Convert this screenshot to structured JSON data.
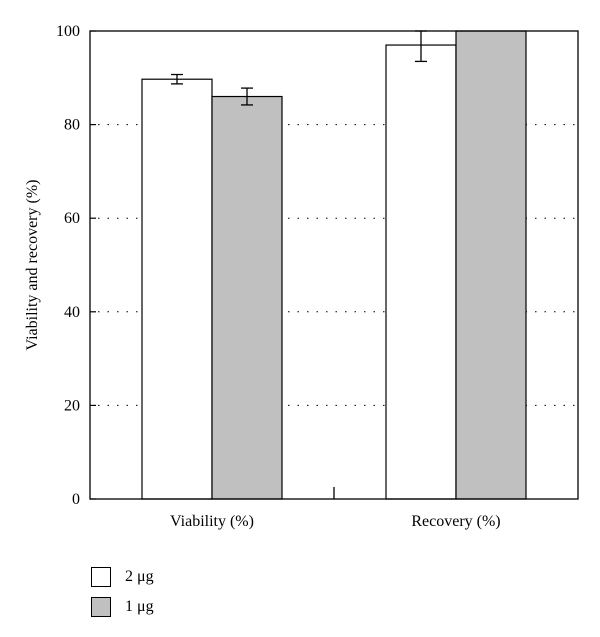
{
  "chart_data": {
    "type": "bar",
    "title": "",
    "xlabel": "",
    "ylabel": "Viability and recovery (%)",
    "ylim": [
      0,
      100
    ],
    "yticks": [
      0,
      20,
      40,
      60,
      80,
      100
    ],
    "grid": "dotted horizontal",
    "legend_position": "bottom-left",
    "categories": [
      "Viability (%)",
      "Recovery (%)"
    ],
    "series": [
      {
        "name": "2 μg",
        "color": "#ffffff",
        "values": [
          89.7,
          97.0
        ],
        "errors": [
          1.0,
          3.5
        ]
      },
      {
        "name": "1 μg",
        "color": "#c0c0c0",
        "values": [
          86.0,
          100.0
        ],
        "errors": [
          1.8,
          null
        ]
      }
    ]
  },
  "legend": {
    "items": [
      {
        "label": "2 μg",
        "color": "#ffffff"
      },
      {
        "label": "1 μg",
        "color": "#c0c0c0"
      }
    ]
  }
}
